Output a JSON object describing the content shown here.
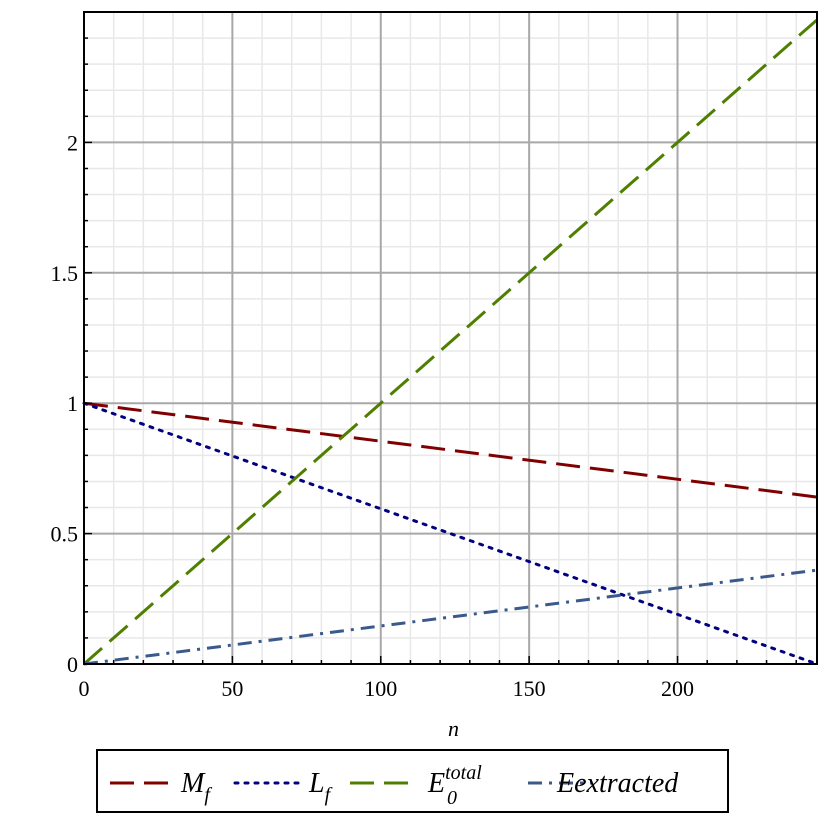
{
  "chart_data": {
    "type": "line",
    "xlabel": "n",
    "ylabel": "",
    "xlim": [
      0,
      247
    ],
    "ylim": [
      0,
      2.5
    ],
    "x_ticks": [
      "0",
      "50",
      "100",
      "150",
      "200"
    ],
    "y_ticks": [
      "0",
      "0.5",
      "1",
      "1.5",
      "2"
    ],
    "grid": true,
    "legend_position": "bottom",
    "series": [
      {
        "name": "M",
        "subscript": "f",
        "superscript": "",
        "color": "#800000",
        "dash": "long-dash",
        "x": [
          0,
          247
        ],
        "y": [
          1.0,
          0.64
        ]
      },
      {
        "name": "L",
        "subscript": "f",
        "superscript": "",
        "color": "#000080",
        "dash": "dotted",
        "x": [
          0,
          247
        ],
        "y": [
          1.0,
          0.0
        ]
      },
      {
        "name": "E",
        "subscript": "0",
        "superscript": "total",
        "color": "#4f7f00",
        "dash": "long-dash",
        "x": [
          0,
          247
        ],
        "y": [
          0.0,
          2.47
        ]
      },
      {
        "name": "Eextracted",
        "subscript": "",
        "superscript": "",
        "color": "#3a5a8c",
        "dash": "dash-dot",
        "x": [
          0,
          247
        ],
        "y": [
          0.0,
          0.36
        ]
      }
    ]
  }
}
